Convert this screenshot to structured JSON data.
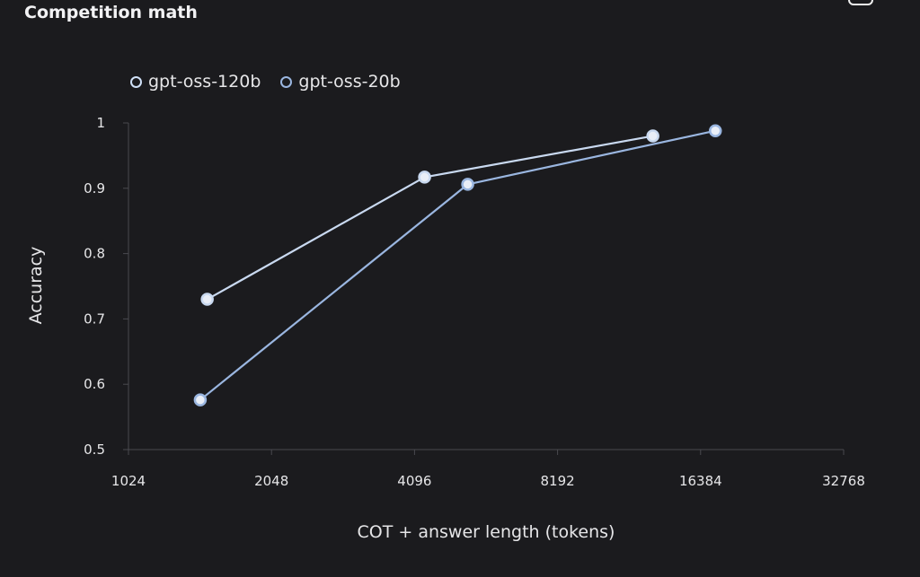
{
  "header": {
    "title": "Competition math"
  },
  "chart_data": {
    "type": "line",
    "title": "",
    "xlabel": "COT + answer length (tokens)",
    "ylabel": "Accuracy",
    "x_scale": "log2",
    "xlim": [
      1024,
      32768
    ],
    "ylim": [
      0.5,
      1.0
    ],
    "x_ticks": [
      "1024",
      "2048",
      "4096",
      "8192",
      "16384",
      "32768"
    ],
    "y_ticks": [
      "0.5",
      "0.6",
      "0.7",
      "0.8",
      "0.9",
      "1"
    ],
    "legend_position": "top-left",
    "series": [
      {
        "name": "gpt-oss-120b",
        "color": "#c9d9f0",
        "x": [
          1500,
          4300,
          13000
        ],
        "y": [
          0.73,
          0.917,
          0.98
        ]
      },
      {
        "name": "gpt-oss-20b",
        "color": "#9ab6e0",
        "x": [
          1450,
          5300,
          17600
        ],
        "y": [
          0.576,
          0.906,
          0.988
        ]
      }
    ]
  }
}
